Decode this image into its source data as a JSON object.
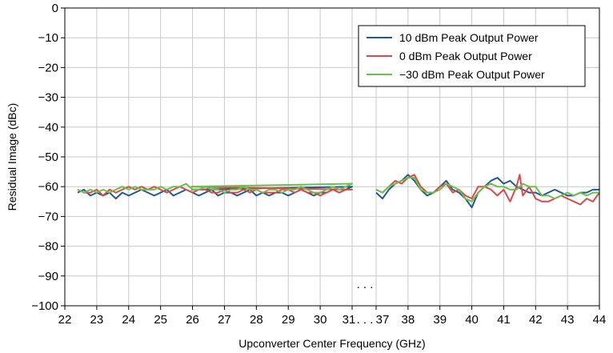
{
  "chart_data": {
    "type": "line",
    "xlabel": "Upconverter Center Frequency (GHz)",
    "ylabel": "Residual Image (dBc)",
    "ylim": [
      -100,
      0
    ],
    "yticks": [
      "0",
      "−10",
      "−20",
      "−30",
      "−40",
      "−50",
      "−60",
      "−70",
      "−80",
      "−90",
      "−100"
    ],
    "xticks_left": [
      "22",
      "23",
      "24",
      "25",
      "26",
      "27",
      "28",
      "29",
      "30",
      "31"
    ],
    "xticks_right": [
      "37",
      "38",
      "39",
      "40",
      "41",
      "42",
      "43",
      "44"
    ],
    "break_marker": ". . .",
    "grid": true,
    "legend_position": "top-right",
    "series": [
      {
        "name": "10 dBm Peak Output Power",
        "color": "#1f5a93",
        "left": {
          "x": [
            22.4,
            22.6,
            22.8,
            23.0,
            23.2,
            23.4,
            23.6,
            23.8,
            24.0,
            24.2,
            24.4,
            24.6,
            24.8,
            25.0,
            25.2,
            25.4,
            25.6,
            25.8,
            26.0,
            26.2,
            26.4,
            26.6,
            26.8,
            27.0,
            27.2,
            27.4,
            27.6,
            27.8,
            28.0,
            28.2,
            28.4,
            28.6,
            28.8,
            29.0,
            29.2,
            29.4,
            29.6,
            29.8,
            30.0,
            30.2,
            30.4,
            30.6,
            30.8,
            31.0,
            31.2
          ],
          "y": [
            -62,
            -61,
            -63,
            -62,
            -63,
            -62,
            -64,
            -62,
            -63,
            -62,
            -61,
            -62,
            -63,
            -62,
            -61,
            -63,
            -62,
            -61,
            -62,
            -63,
            -62,
            -61,
            -63,
            -62,
            -62,
            -63,
            -62,
            -61,
            -63,
            -62,
            -63,
            -62,
            -62,
            -63,
            -62,
            -61,
            -62,
            -63,
            -62,
            -62,
            -61,
            -62,
            -61,
            -60,
            -61
          ]
        },
        "right": {
          "x": [
            37.0,
            37.2,
            37.4,
            37.6,
            37.8,
            38.0,
            38.2,
            38.4,
            38.6,
            38.8,
            39.0,
            39.2,
            39.4,
            39.6,
            39.8,
            40.0,
            40.2,
            40.4,
            40.6,
            40.8,
            41.0,
            41.2,
            41.4,
            41.6,
            41.8,
            42.0,
            42.2,
            42.4,
            42.6,
            42.8,
            43.0,
            43.2,
            43.4,
            43.6,
            43.8,
            44.0
          ],
          "y": [
            -62,
            -64,
            -61,
            -59,
            -58,
            -56,
            -58,
            -61,
            -63,
            -62,
            -60,
            -58,
            -61,
            -62,
            -64,
            -67,
            -62,
            -60,
            -58,
            -57,
            -59,
            -58,
            -60,
            -61,
            -62,
            -62,
            -63,
            -62,
            -61,
            -62,
            -63,
            -63,
            -62,
            -62,
            -61,
            -61
          ]
        }
      },
      {
        "name": "0 dBm Peak Output Power",
        "color": "#e04848",
        "left": {
          "x": [
            22.4,
            22.6,
            22.8,
            23.0,
            23.2,
            23.4,
            23.6,
            23.8,
            24.0,
            24.2,
            24.4,
            24.6,
            24.8,
            25.0,
            25.2,
            25.4,
            25.6,
            25.8,
            26.0,
            26.2,
            26.4,
            26.6,
            26.8,
            27.0,
            27.2,
            27.4,
            27.6,
            27.8,
            28.0,
            28.2,
            28.4,
            28.6,
            28.8,
            29.0,
            29.2,
            29.4,
            29.6,
            29.8,
            30.0,
            30.2,
            30.4,
            30.6,
            30.8,
            31.0,
            31.2
          ],
          "y": [
            -61,
            -62,
            -62,
            -61,
            -63,
            -61,
            -62,
            -61,
            -60,
            -61,
            -60,
            -61,
            -60,
            -61,
            -62,
            -61,
            -60,
            -61,
            -62,
            -61,
            -61,
            -62,
            -62,
            -61,
            -62,
            -62,
            -61,
            -62,
            -61,
            -62,
            -62,
            -62,
            -61,
            -61,
            -62,
            -61,
            -62,
            -62,
            -63,
            -62,
            -61,
            -62,
            -61,
            -61,
            -60
          ]
        },
        "right": {
          "x": [
            37.0,
            37.2,
            37.4,
            37.6,
            37.8,
            38.0,
            38.2,
            38.4,
            38.6,
            38.8,
            39.0,
            39.2,
            39.4,
            39.6,
            39.8,
            40.0,
            40.2,
            40.4,
            40.6,
            40.8,
            41.0,
            41.2,
            41.4,
            41.5,
            41.6,
            41.8,
            42.0,
            42.2,
            42.4,
            42.6,
            42.8,
            43.0,
            43.2,
            43.4,
            43.6,
            43.8,
            44.0
          ],
          "y": [
            -61,
            -62,
            -60,
            -58,
            -59,
            -57,
            -56,
            -60,
            -62,
            -62,
            -60,
            -59,
            -62,
            -61,
            -63,
            -64,
            -60,
            -60,
            -61,
            -63,
            -61,
            -65,
            -60,
            -56,
            -63,
            -60,
            -64,
            -65,
            -65,
            -64,
            -63,
            -64,
            -65,
            -66,
            -64,
            -65,
            -62
          ]
        }
      },
      {
        "name": "−30 dBm Peak Output Power",
        "color": "#6cc04a",
        "left": {
          "x": [
            22.4,
            22.6,
            22.8,
            23.0,
            23.2,
            23.4,
            23.6,
            23.8,
            24.0,
            24.2,
            24.4,
            24.6,
            24.8,
            25.0,
            25.2,
            25.4,
            25.6,
            25.8,
            26.0,
            26.2,
            26.4,
            26.6,
            26.8,
            27.0,
            27.2,
            27.4,
            27.6,
            27.8,
            28.0,
            28.2,
            28.4,
            28.6,
            28.8,
            29.0,
            29.2,
            29.4,
            29.6,
            29.8,
            30.0,
            30.2,
            30.4,
            30.6,
            30.8,
            31.0,
            31.2
          ],
          "y": [
            -61,
            -62,
            -61,
            -62,
            -61,
            -62,
            -61,
            -60,
            -61,
            -60,
            -61,
            -61,
            -61,
            -60,
            -61,
            -60,
            -60,
            -59,
            -61,
            -61,
            -60,
            -61,
            -61,
            -62,
            -61,
            -61,
            -60,
            -61,
            -61,
            -62,
            -61,
            -61,
            -62,
            -61,
            -61,
            -60,
            -61,
            -62,
            -62,
            -61,
            -60,
            -61,
            -60,
            -59,
            -60
          ]
        },
        "right": {
          "x": [
            37.0,
            37.2,
            37.4,
            37.6,
            37.8,
            38.0,
            38.2,
            38.4,
            38.6,
            38.8,
            39.0,
            39.2,
            39.4,
            39.6,
            39.8,
            40.0,
            40.2,
            40.4,
            40.6,
            40.8,
            41.0,
            41.2,
            41.4,
            41.6,
            41.8,
            42.0,
            42.2,
            42.4,
            42.6,
            42.8,
            43.0,
            43.2,
            43.4,
            43.6,
            43.8,
            44.0
          ],
          "y": [
            -61,
            -62,
            -60,
            -59,
            -58,
            -57,
            -57,
            -61,
            -62,
            -62,
            -61,
            -59,
            -60,
            -61,
            -64,
            -65,
            -62,
            -60,
            -59,
            -60,
            -60,
            -61,
            -61,
            -59,
            -60,
            -60,
            -63,
            -63,
            -64,
            -63,
            -62,
            -63,
            -62,
            -63,
            -62,
            -62
          ]
        }
      }
    ]
  }
}
